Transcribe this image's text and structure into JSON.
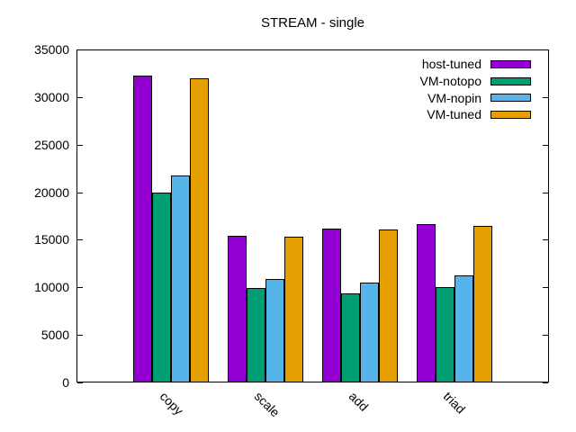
{
  "page": {
    "background": "#ffffff"
  },
  "chart_data": {
    "type": "bar",
    "title": "STREAM - single",
    "categories": [
      "copy",
      "scale",
      "add",
      "triad"
    ],
    "series": [
      {
        "name": "host-tuned",
        "color": "#9400d3",
        "values": [
          32200,
          15300,
          16100,
          16600
        ]
      },
      {
        "name": "VM-notopo",
        "color": "#009e73",
        "values": [
          19900,
          9800,
          9300,
          9900
        ]
      },
      {
        "name": "VM-nopin",
        "color": "#56b4e9",
        "values": [
          21700,
          10800,
          10400,
          11200
        ]
      },
      {
        "name": "VM-tuned",
        "color": "#e69f00",
        "values": [
          31900,
          15200,
          16000,
          16400
        ]
      }
    ],
    "xlabel": "",
    "ylabel": "",
    "ylim": [
      0,
      35000
    ],
    "yticks": [
      0,
      5000,
      10000,
      15000,
      20000,
      25000,
      30000,
      35000
    ],
    "grid": false,
    "legend_position": "top-right",
    "bar_border_color": "#000000",
    "axis_color": "#000000"
  }
}
